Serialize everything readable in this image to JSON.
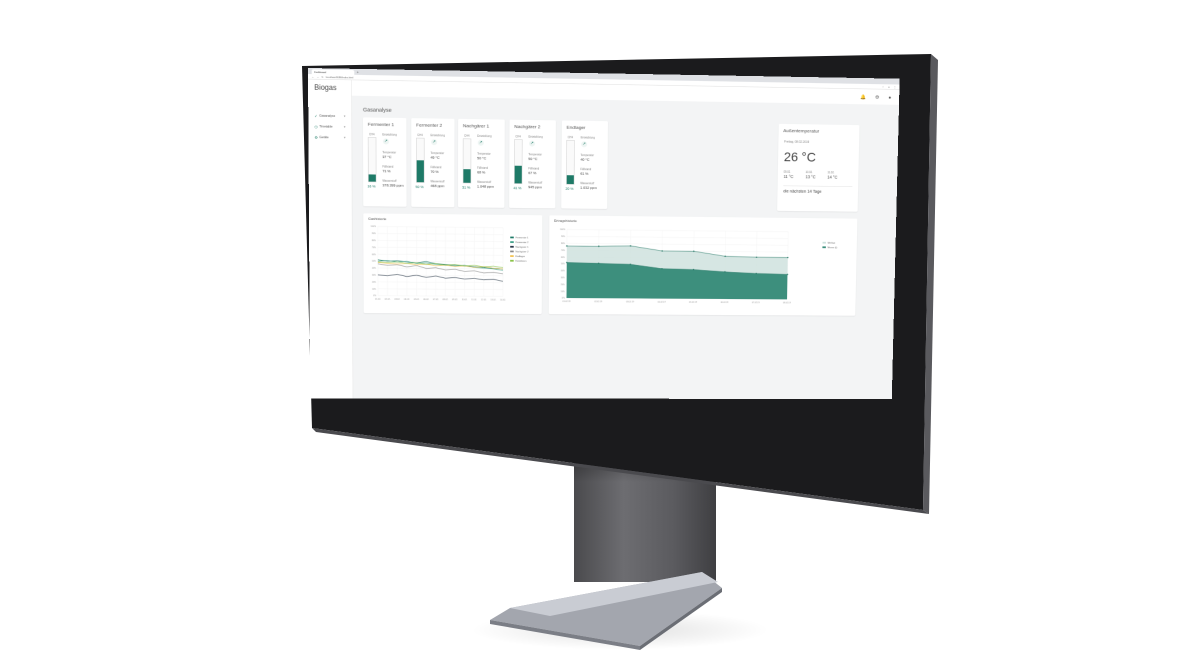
{
  "browser": {
    "tab_title": "Dashboard",
    "new_tab": "+",
    "url": "localhost:8080/index.html"
  },
  "app": {
    "brand": "Biogas",
    "sidebar": [
      {
        "icon": "check-icon",
        "glyph": "✓",
        "label": "Gasanalyse"
      },
      {
        "icon": "clock-icon",
        "glyph": "◷",
        "label": "Timetable"
      },
      {
        "icon": "gear-icon",
        "glyph": "⚙",
        "label": "Geräte"
      }
    ],
    "topbar": {
      "bell": "🔔",
      "settings": "⚙",
      "user": "●"
    },
    "section_title": "Gasanalyse"
  },
  "tanks": [
    {
      "title": "Fermenter 1",
      "ch4_label": "CH4",
      "pct": 16,
      "pct_label": "16 %",
      "trend_label": "Entwicklung",
      "temp_label": "Temperatur",
      "temp": "37 °C",
      "fill_label": "Füllstand",
      "fill": "71 %",
      "h2s_label": "Wasserstoff",
      "h2s": "378.399 ppm"
    },
    {
      "title": "Fermenter 2",
      "ch4_label": "CH4",
      "pct": 50,
      "pct_label": "50 %",
      "trend_label": "Entwicklung",
      "temp_label": "Temperatur",
      "temp": "49 °C",
      "fill_label": "Füllstand",
      "fill": "70 %",
      "h2s_label": "Wasserstoff",
      "h2s": "468 ppm"
    },
    {
      "title": "Nachgärer 1",
      "ch4_label": "CH4",
      "pct": 31,
      "pct_label": "31 %",
      "trend_label": "Entwicklung",
      "temp_label": "Temperatur",
      "temp": "50 °C",
      "fill_label": "Füllstand",
      "fill": "68 %",
      "h2s_label": "Wasserstoff",
      "h2s": "1.048 ppm"
    },
    {
      "title": "Nachgärer 2",
      "ch4_label": "CH4",
      "pct": 41,
      "pct_label": "41 %",
      "trend_label": "Entwicklung",
      "temp_label": "Temperatur",
      "temp": "50 °C",
      "fill_label": "Füllstand",
      "fill": "67 %",
      "h2s_label": "Wasserstoff",
      "h2s": "945 ppm"
    },
    {
      "title": "Endlager",
      "ch4_label": "CH4",
      "pct": 20,
      "pct_label": "20 %",
      "trend_label": "Entwicklung",
      "temp_label": "Temperatur",
      "temp": "40 °C",
      "fill_label": "Füllstand",
      "fill": "61 %",
      "h2s_label": "Wasserstoff",
      "h2s": "1.032 ppm"
    }
  ],
  "weather": {
    "title": "Außentemperatur",
    "date": "Freitag, 08.02.2019",
    "temp": "26 °C",
    "forecast": [
      {
        "day": "09.02.",
        "temp": "11 °C"
      },
      {
        "day": "10.02.",
        "temp": "13 °C"
      },
      {
        "day": "11.02.",
        "temp": "14 °C"
      }
    ],
    "link": "die nächsten 14 Tage"
  },
  "colors": {
    "accent": "#1e7a67",
    "accent_light": "#cfe2de"
  },
  "chart_data": [
    {
      "type": "line",
      "title": "Gashistorie",
      "ylim": [
        0,
        100
      ],
      "x": [
        "01.02.",
        "02.02.",
        "03.02.",
        "04.02.",
        "05.02.",
        "06.02.",
        "07.02.",
        "08.02.",
        "09.02.",
        "10.02.",
        "11.02.",
        "12.02.",
        "13.02.",
        "14.02."
      ],
      "series": [
        {
          "name": "Fermenter 1",
          "color": "#1e7a67",
          "values": [
            52,
            50,
            51,
            49,
            48,
            50,
            47,
            46,
            45,
            44,
            43,
            42,
            41,
            40
          ]
        },
        {
          "name": "Fermenter 2",
          "color": "#3a9e86",
          "values": [
            50,
            51,
            49,
            50,
            47,
            48,
            46,
            45,
            44,
            45,
            42,
            41,
            40,
            38
          ]
        },
        {
          "name": "Nachgärer 1",
          "color": "#2b3a4a",
          "values": [
            30,
            29,
            31,
            28,
            30,
            27,
            29,
            26,
            27,
            25,
            26,
            24,
            25,
            22
          ]
        },
        {
          "name": "Nachgärer 2",
          "color": "#888888",
          "values": [
            46,
            44,
            45,
            42,
            44,
            40,
            41,
            38,
            39,
            36,
            37,
            34,
            35,
            33
          ]
        },
        {
          "name": "Endlager",
          "color": "#f2c14e",
          "values": [
            48,
            47,
            46,
            47,
            45,
            46,
            44,
            45,
            43,
            44,
            42,
            43,
            41,
            40
          ]
        },
        {
          "name": "Kennlinien",
          "color": "#8bc34a",
          "values": [
            49,
            48,
            49,
            47,
            48,
            46,
            47,
            45,
            46,
            44,
            45,
            43,
            44,
            42
          ]
        }
      ]
    },
    {
      "type": "area",
      "title": "Ertragshistorie",
      "ylim": [
        0,
        100
      ],
      "x": [
        "01.02.19",
        "02.02.19",
        "03.02.19",
        "04.02.19",
        "05.02.19",
        "06.02.19",
        "07.02.19",
        "08.02.19"
      ],
      "series": [
        {
          "name": "Methan",
          "color": "#cfe2de",
          "values": [
            76,
            76,
            77,
            70,
            70,
            63,
            62,
            62
          ]
        },
        {
          "name": "Masse (t)",
          "color": "#3d8f7d",
          "values": [
            52,
            51,
            50,
            44,
            43,
            40,
            38,
            37
          ]
        }
      ]
    }
  ]
}
